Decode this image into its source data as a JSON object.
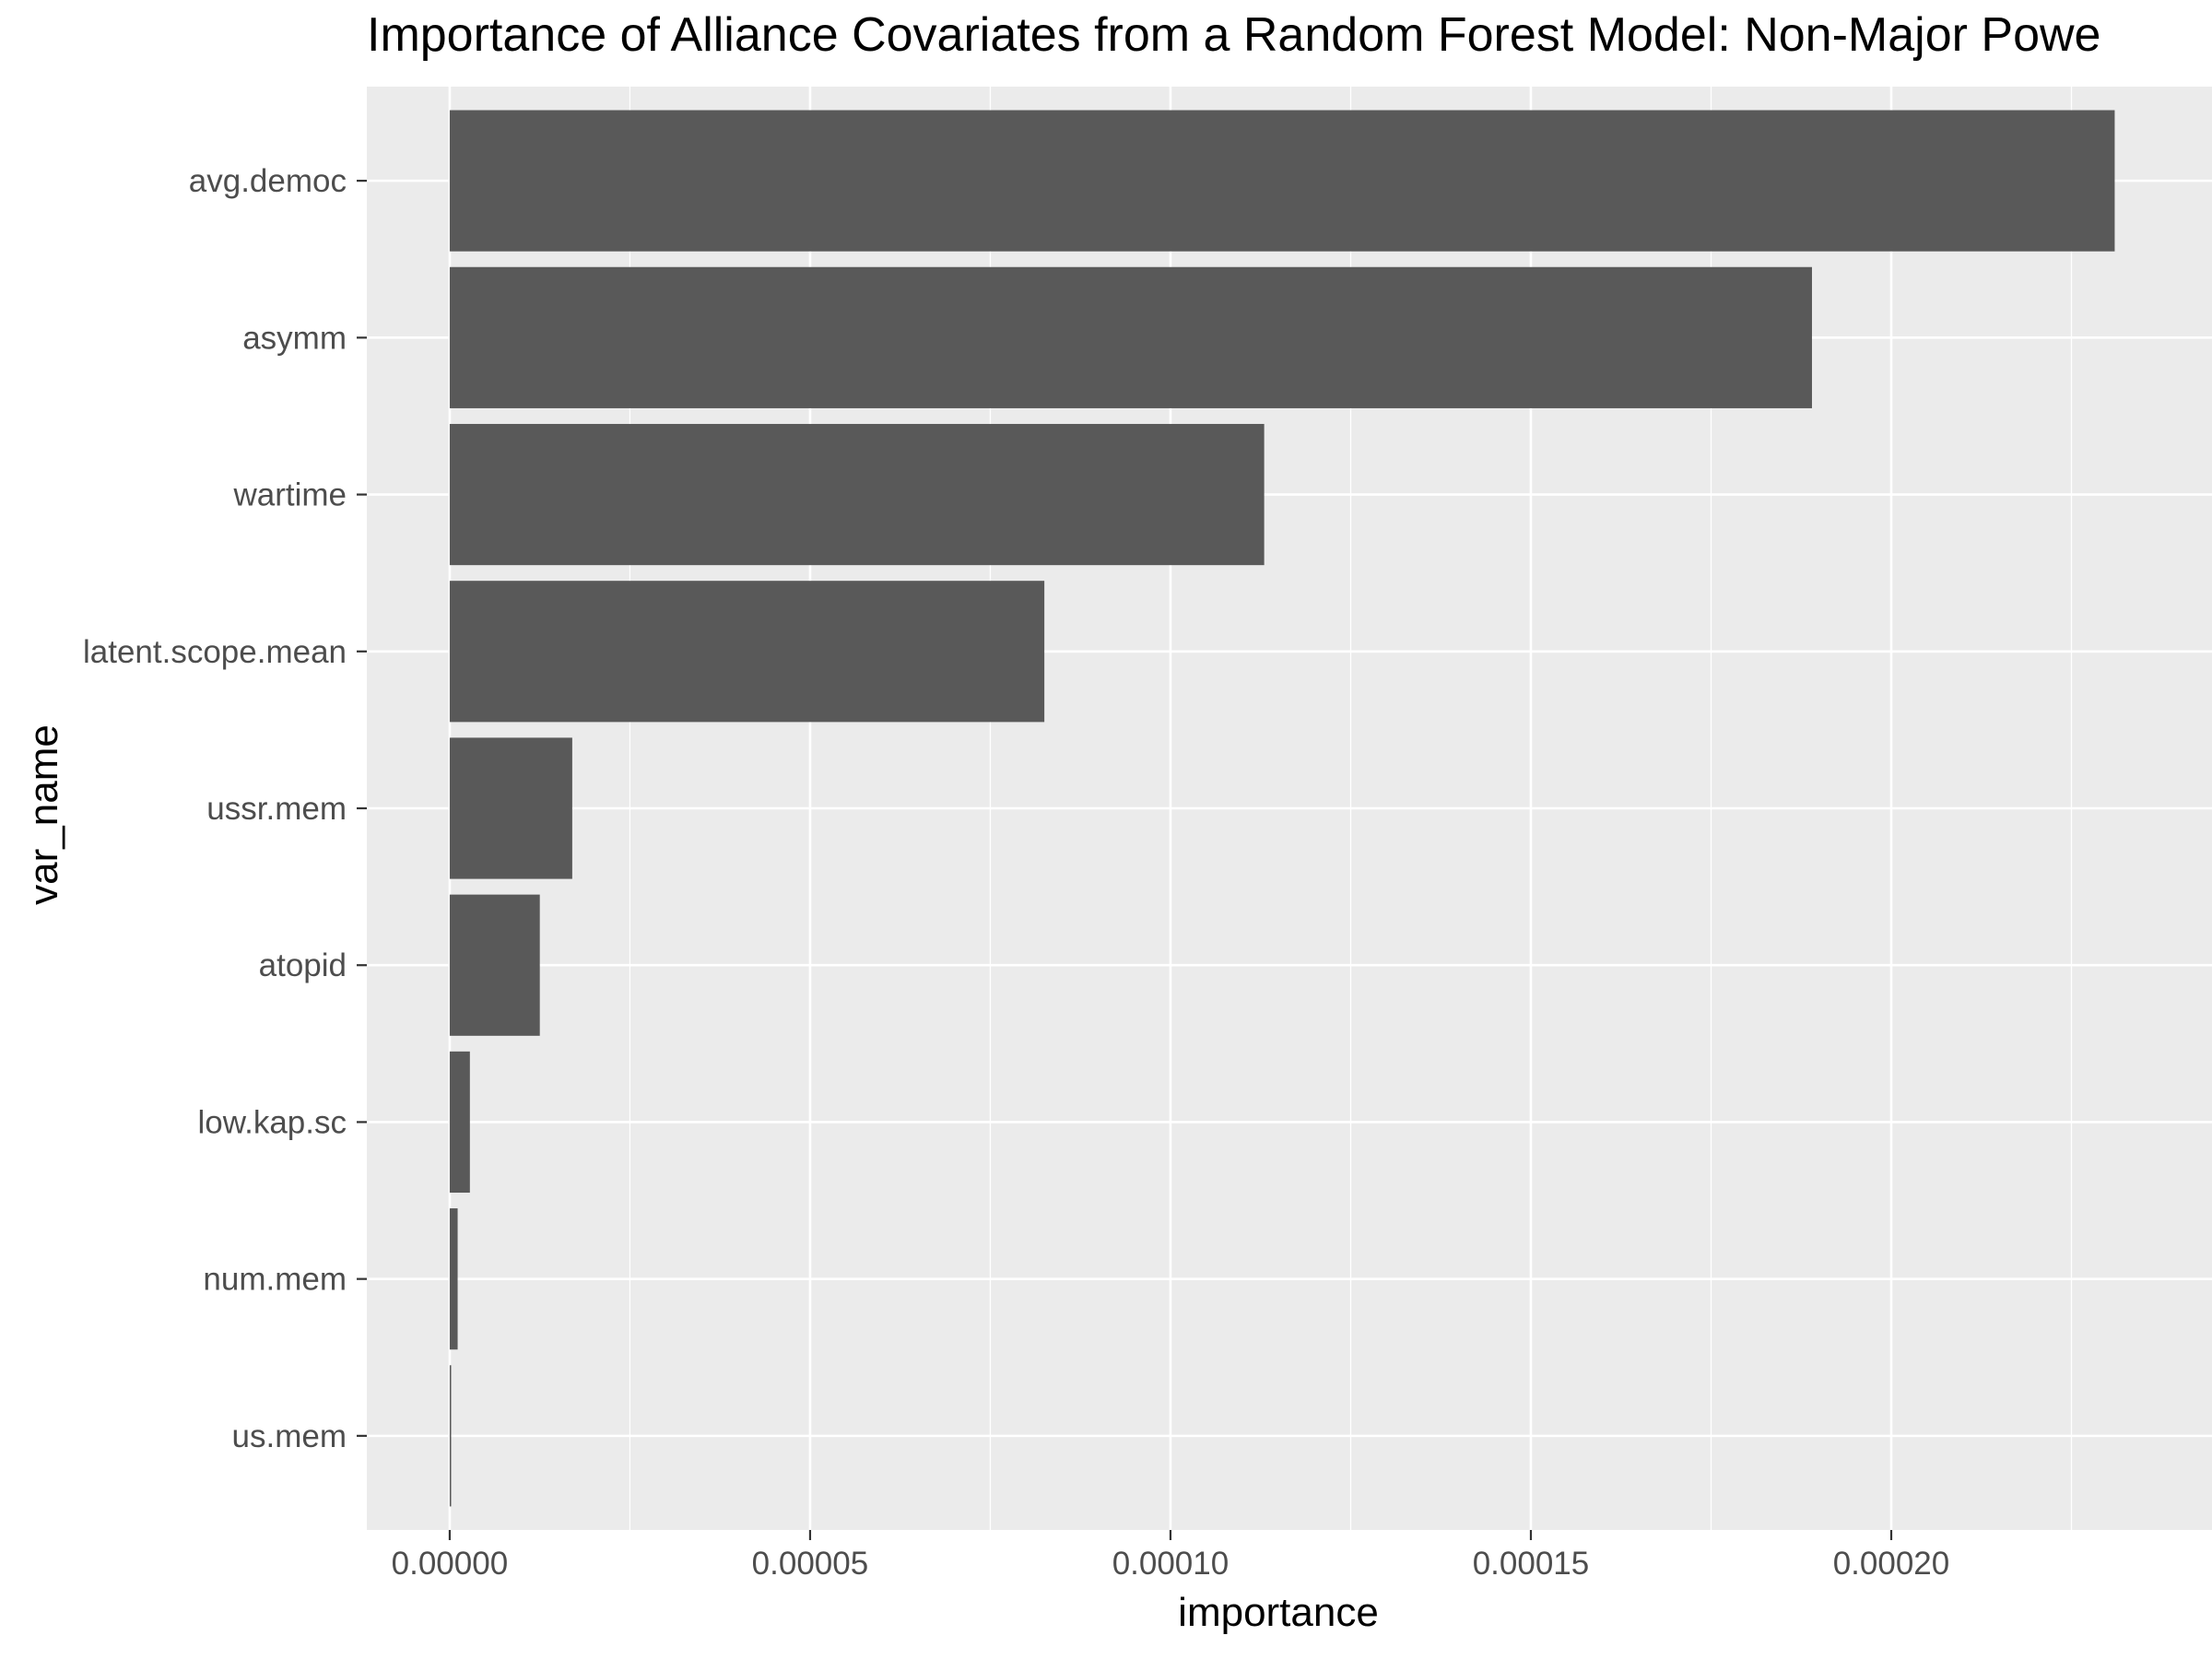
{
  "chart_data": {
    "type": "bar",
    "orientation": "horizontal",
    "title": "Importance of Alliance Covariates from a Random Forest Model: Non-Major Powe",
    "xlabel": "importance",
    "ylabel": "var_name",
    "categories": [
      "avg.democ",
      "asymm",
      "wartime",
      "latent.scope.mean",
      "ussr.mem",
      "atopid",
      "low.kap.sc",
      "num.mem",
      "us.mem"
    ],
    "values": [
      0.000231,
      0.000189,
      0.000113,
      8.25e-05,
      1.7e-05,
      1.25e-05,
      2.8e-06,
      1.1e-06,
      2e-07
    ],
    "xlim": [
      -1.15e-05,
      0.0002445
    ],
    "x_ticks": [
      0,
      5e-05,
      0.0001,
      0.00015,
      0.0002
    ],
    "x_tick_labels": [
      "0.00000",
      "0.00005",
      "0.00010",
      "0.00015",
      "0.00020"
    ],
    "grid": true,
    "colors": {
      "bar": "#595959",
      "panel_background": "#ebebeb",
      "grid_major": "#ffffff",
      "tick_text": "#4d4d4d",
      "tick_mark": "#333333"
    }
  }
}
